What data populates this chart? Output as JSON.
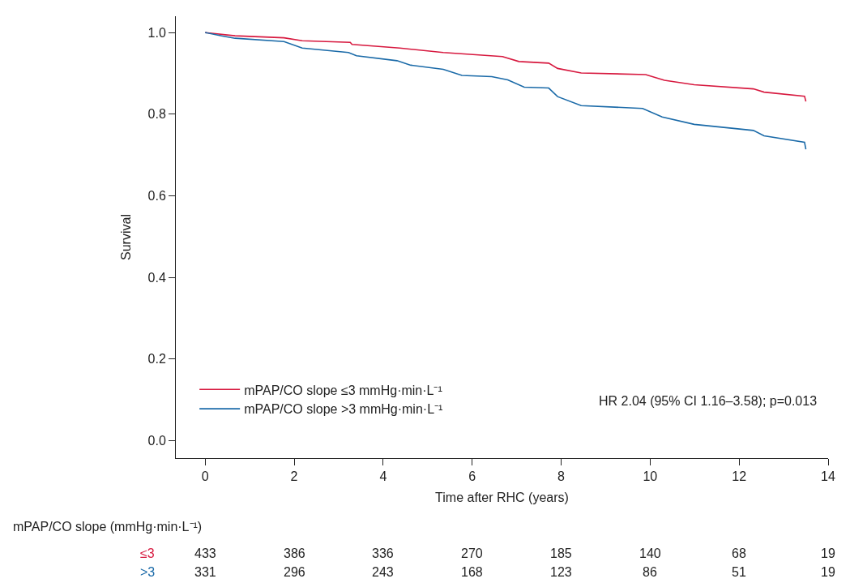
{
  "chart_data": {
    "type": "line",
    "xlabel": "Time after RHC (years)",
    "ylabel": "Survival",
    "xlim": [
      -0.66,
      14
    ],
    "ylim": [
      -0.043,
      1.04
    ],
    "xticks": [
      0,
      2,
      4,
      6,
      8,
      10,
      12,
      14
    ],
    "yticks": [
      {
        "value": 0,
        "label": "0.0"
      },
      {
        "value": 0.2,
        "label": "0.2"
      },
      {
        "value": 0.4,
        "label": "0.4"
      },
      {
        "value": 0.6,
        "label": "0.6"
      },
      {
        "value": 0.8,
        "label": "0.8"
      },
      {
        "value": 1,
        "label": "1.0"
      }
    ],
    "legend": "bottom left",
    "marker": "none",
    "line_style": "solid",
    "series": [
      {
        "name": "mPAP/CO slope ≤3 mmHg·min·L⁻¹",
        "color": "#d7193f",
        "x": [
          0,
          0.67,
          1.77,
          2.18,
          3.26,
          3.3,
          4.37,
          5.35,
          6.68,
          7.05,
          7.72,
          7.92,
          8.45,
          9.9,
          10.32,
          10.99,
          12.32,
          12.56,
          13.47,
          13.5
        ],
        "values": [
          1.0,
          0.992,
          0.987,
          0.98,
          0.976,
          0.971,
          0.962,
          0.951,
          0.941,
          0.929,
          0.925,
          0.912,
          0.901,
          0.897,
          0.883,
          0.872,
          0.862,
          0.854,
          0.844,
          0.831
        ]
      },
      {
        "name": "mPAP/CO slope >3 mmHg·min·L⁻¹",
        "color": "#1a6aa8",
        "x": [
          0,
          0.37,
          0.67,
          1.77,
          2.18,
          3.22,
          3.4,
          4.31,
          4.62,
          5.35,
          5.77,
          6.44,
          6.8,
          7.17,
          7.72,
          7.92,
          8.45,
          9.83,
          10.27,
          10.99,
          12.32,
          12.56,
          13.47,
          13.5
        ],
        "values": [
          1.0,
          0.992,
          0.986,
          0.978,
          0.962,
          0.951,
          0.943,
          0.931,
          0.92,
          0.91,
          0.895,
          0.892,
          0.884,
          0.866,
          0.864,
          0.843,
          0.821,
          0.814,
          0.793,
          0.775,
          0.76,
          0.747,
          0.731,
          0.714
        ]
      }
    ],
    "annotations": [
      "HR 2.04 (95% CI 1.16–3.58); p=0.013",
      "mPAP/CO slope (mmHg·min·L⁻¹)",
      "≤3",
      "433",
      "386",
      "336",
      "270",
      "185",
      "140",
      "68",
      "19",
      ">3",
      "331",
      "296",
      "243",
      "168",
      "123",
      "86",
      "51",
      "19"
    ]
  }
}
